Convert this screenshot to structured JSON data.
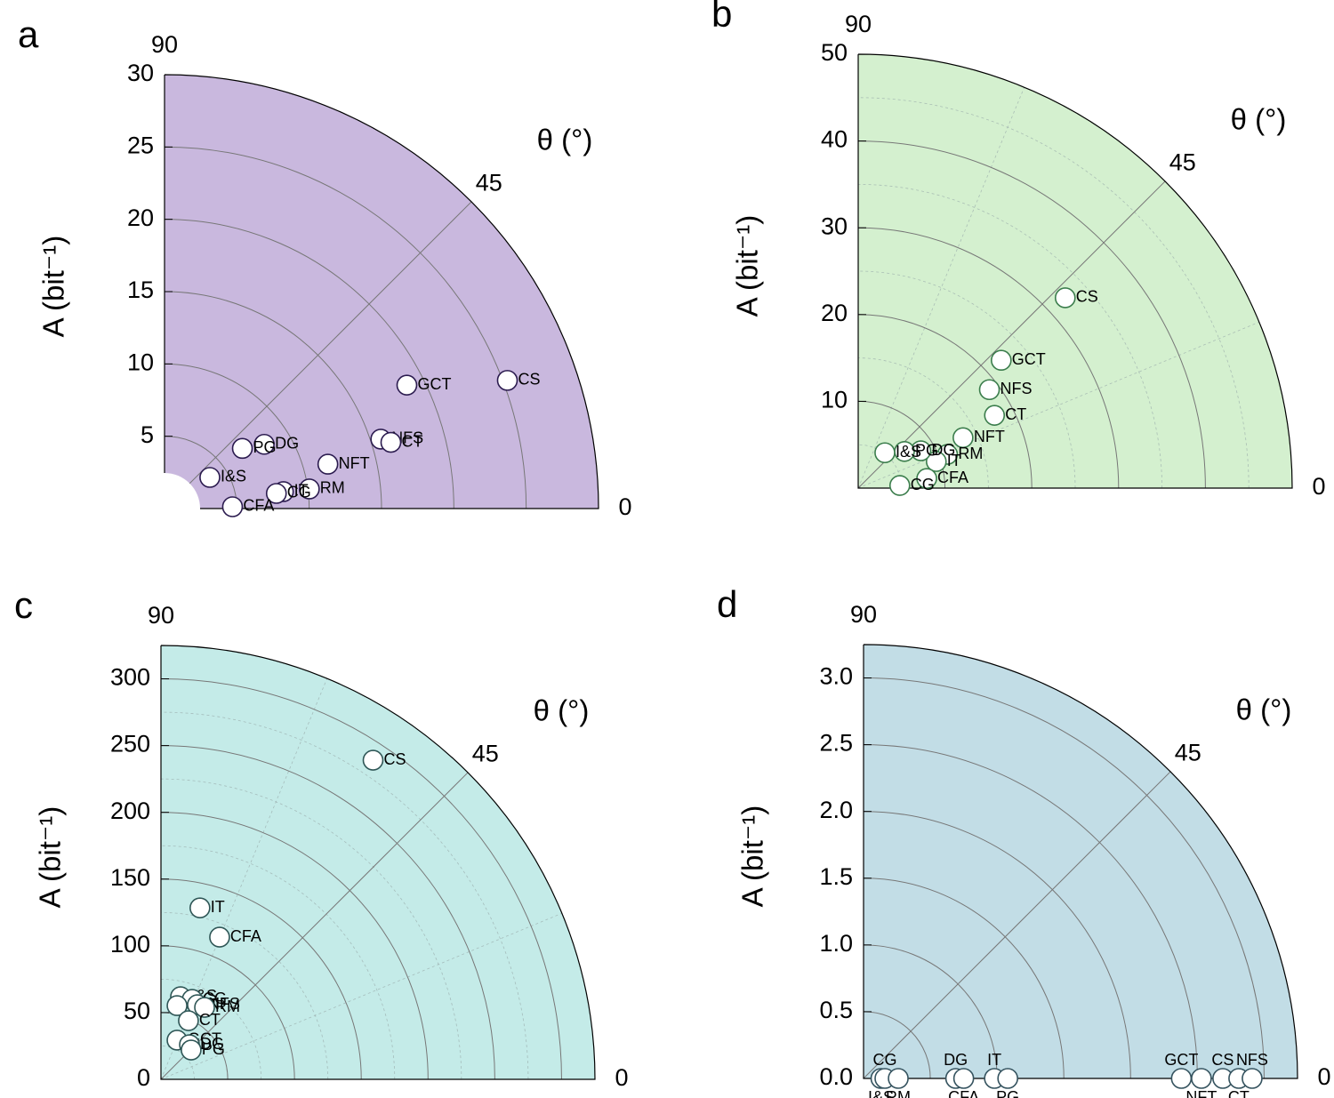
{
  "chart_data": [
    {
      "type": "polar-scatter",
      "title": "a",
      "xlabel": "θ (°)",
      "ylabel": "A (bit⁻¹)",
      "thetalim": [
        0,
        90
      ],
      "thetaticks": [
        0,
        45,
        90
      ],
      "ylim": [
        0,
        30
      ],
      "yticks": [
        5,
        10,
        15,
        20,
        25,
        30
      ],
      "background": "#c9b8de",
      "marker_edge": "#2b1b4f",
      "minor_grid": false,
      "categories": [
        "CS",
        "GCT",
        "NFS",
        "CT",
        "NFT",
        "RM",
        "IT",
        "CG",
        "CFA",
        "DG",
        "PG",
        "I&S"
      ],
      "values": [
        25.3,
        18.8,
        15.7,
        16.3,
        11.7,
        10.1,
        8.3,
        7.8,
        4.7,
        8.2,
        6.8,
        3.8
      ],
      "theta": [
        20.5,
        27,
        17.8,
        16.3,
        15.2,
        7.7,
        8.1,
        7.7,
        1.5,
        32.8,
        37.7,
        34.5
      ]
    },
    {
      "type": "polar-scatter",
      "title": "b",
      "xlabel": "θ (°)",
      "ylabel": "A (bit⁻¹)",
      "thetalim": [
        0,
        90
      ],
      "thetaticks": [
        0,
        45,
        90
      ],
      "ylim": [
        0,
        50
      ],
      "yticks": [
        10,
        20,
        30,
        40,
        50
      ],
      "background": "#d4f0cf",
      "marker_edge": "#3b7d4c",
      "minor_grid": true,
      "categories": [
        "CS",
        "GCT",
        "NFS",
        "CT",
        "NFT",
        "RM",
        "IT",
        "CFA",
        "DG",
        "PG",
        "I&S",
        "CG"
      ],
      "values": [
        32.4,
        22.1,
        18.9,
        17.8,
        13.4,
        11.0,
        9.5,
        7.97,
        8.4,
        6.8,
        5.1,
        4.8
      ],
      "theta": [
        42.6,
        41.8,
        36.9,
        28.1,
        25.7,
        20.7,
        18.8,
        8,
        30.8,
        38.4,
        53,
        3.6
      ]
    },
    {
      "type": "polar-scatter",
      "title": "c",
      "xlabel": "θ (°)",
      "ylabel": "A (bit⁻¹)",
      "thetalim": [
        0,
        90
      ],
      "thetaticks": [
        0,
        45,
        90
      ],
      "ylim": [
        0,
        325
      ],
      "yticks": [
        0,
        50,
        100,
        150,
        200,
        250,
        300
      ],
      "background": "#c4ebe8",
      "marker_edge": "#2f5656",
      "minor_grid": true,
      "categories": [
        "CS",
        "IT",
        "CFA",
        "I&S",
        "CG",
        "NFT",
        "NFS",
        "RM",
        "CT",
        "GCT",
        "DG",
        "PG"
      ],
      "values": [
        287,
        131.7,
        115.2,
        63.6,
        64.3,
        56.5,
        62.2,
        63,
        48.5,
        31.7,
        33.6,
        31.5
      ],
      "theta": [
        56.4,
        77.2,
        67.6,
        76.7,
        68.7,
        77.7,
        64,
        58.8,
        64.9,
        67.7,
        50.6,
        44.2
      ]
    },
    {
      "type": "polar-scatter",
      "title": "d",
      "xlabel": "θ (°)",
      "ylabel": "A (bit⁻¹)",
      "thetalim": [
        0,
        90
      ],
      "thetaticks": [
        0,
        45,
        90
      ],
      "ylim": [
        0,
        3.25
      ],
      "yticks": [
        {
          "value": 0,
          "label": "0.0"
        },
        0.5,
        {
          "value": 1,
          "label": "1.0"
        },
        1.5,
        {
          "value": 2,
          "label": "2.0"
        },
        2.5,
        {
          "value": 3,
          "label": "3.0"
        }
      ],
      "background": "#c2dde6",
      "marker_edge": "#34525e",
      "minor_grid": false,
      "categories": [
        "I&S",
        "CG",
        "RM",
        "DG",
        "CFA",
        "IT",
        "PG",
        "GCT",
        "NFT",
        "CS",
        "CT",
        "NFS"
      ],
      "values": [
        0.13,
        0.16,
        0.26,
        0.69,
        0.75,
        0.98,
        1.08,
        2.38,
        2.53,
        2.69,
        2.81,
        2.91
      ],
      "theta": [
        0,
        0,
        0,
        0,
        0,
        0,
        0,
        0,
        0,
        0,
        0,
        0
      ]
    }
  ]
}
